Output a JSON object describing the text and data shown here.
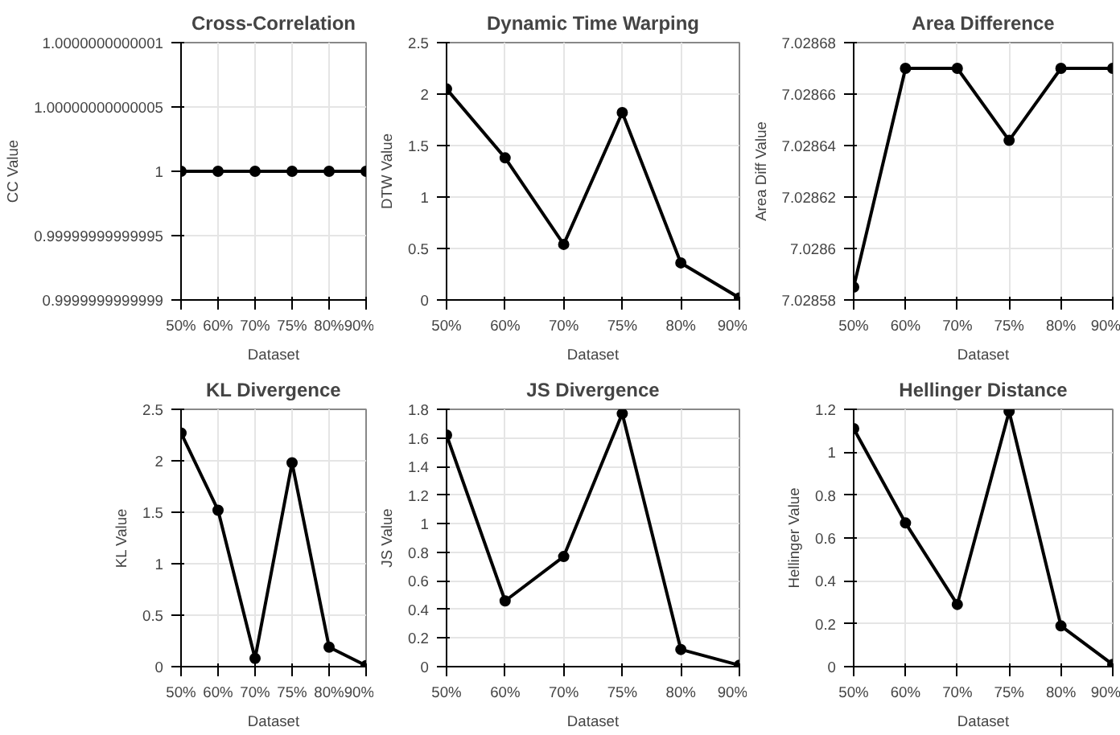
{
  "chart_data": [
    {
      "type": "line",
      "title": "Cross-Correlation",
      "xlabel": "Dataset",
      "ylabel": "CC Value",
      "categories": [
        "50%",
        "60%",
        "70%",
        "75%",
        "80%",
        "90%"
      ],
      "values": [
        1,
        1,
        1,
        1,
        1,
        1
      ],
      "color": "#000000",
      "ylim": [
        0.9999999999999,
        1.0000000000001
      ],
      "yticks": [
        0.9999999999999,
        0.99999999999995,
        1,
        1.00000000000005,
        1.0000000000001
      ],
      "grid": true,
      "marker": "circle"
    },
    {
      "type": "line",
      "title": "Dynamic Time Warping",
      "xlabel": "Dataset",
      "ylabel": "DTW Value",
      "categories": [
        "50%",
        "60%",
        "70%",
        "75%",
        "80%",
        "90%"
      ],
      "values": [
        2.05,
        1.38,
        0.54,
        1.82,
        0.36,
        0.02
      ],
      "color": "#000000",
      "ylim": [
        0,
        2.5
      ],
      "yticks": [
        0,
        0.5,
        1,
        1.5,
        2,
        2.5
      ],
      "grid": true,
      "marker": "circle"
    },
    {
      "type": "line",
      "title": "Area Difference",
      "xlabel": "Dataset",
      "ylabel": "Area Diff Value",
      "categories": [
        "50%",
        "60%",
        "70%",
        "75%",
        "80%",
        "90%"
      ],
      "values": [
        7.028585,
        7.02867,
        7.02867,
        7.028642,
        7.02867,
        7.02867
      ],
      "color": "#000000",
      "ylim": [
        7.02858,
        7.02868
      ],
      "yticks": [
        7.02858,
        7.0286,
        7.02862,
        7.02864,
        7.02866,
        7.02868
      ],
      "grid": true,
      "marker": "circle"
    },
    {
      "type": "line",
      "title": "KL Divergence",
      "xlabel": "Dataset",
      "ylabel": "KL Value",
      "categories": [
        "50%",
        "60%",
        "70%",
        "75%",
        "80%",
        "90%"
      ],
      "values": [
        2.27,
        1.52,
        0.08,
        1.98,
        0.19,
        0.01
      ],
      "color": "#000000",
      "ylim": [
        0,
        2.5
      ],
      "yticks": [
        0,
        0.5,
        1,
        1.5,
        2,
        2.5
      ],
      "grid": true,
      "marker": "circle"
    },
    {
      "type": "line",
      "title": "JS Divergence",
      "xlabel": "Dataset",
      "ylabel": "JS Value",
      "categories": [
        "50%",
        "60%",
        "70%",
        "75%",
        "80%",
        "90%"
      ],
      "values": [
        1.62,
        0.46,
        0.77,
        1.77,
        0.12,
        0.01
      ],
      "color": "#000000",
      "ylim": [
        0,
        1.8
      ],
      "yticks": [
        0,
        0.2,
        0.4,
        0.6,
        0.8,
        1,
        1.2,
        1.4,
        1.6,
        1.8
      ],
      "grid": true,
      "marker": "circle"
    },
    {
      "type": "line",
      "title": "Hellinger Distance",
      "xlabel": "Dataset",
      "ylabel": "Hellinger Value",
      "categories": [
        "50%",
        "60%",
        "70%",
        "75%",
        "80%",
        "90%"
      ],
      "values": [
        1.11,
        0.67,
        0.29,
        1.19,
        0.19,
        0.01
      ],
      "color": "#000000",
      "ylim": [
        0,
        1.2
      ],
      "yticks": [
        0,
        0.2,
        0.4,
        0.6,
        0.8,
        1,
        1.2
      ],
      "grid": true,
      "marker": "circle"
    }
  ]
}
